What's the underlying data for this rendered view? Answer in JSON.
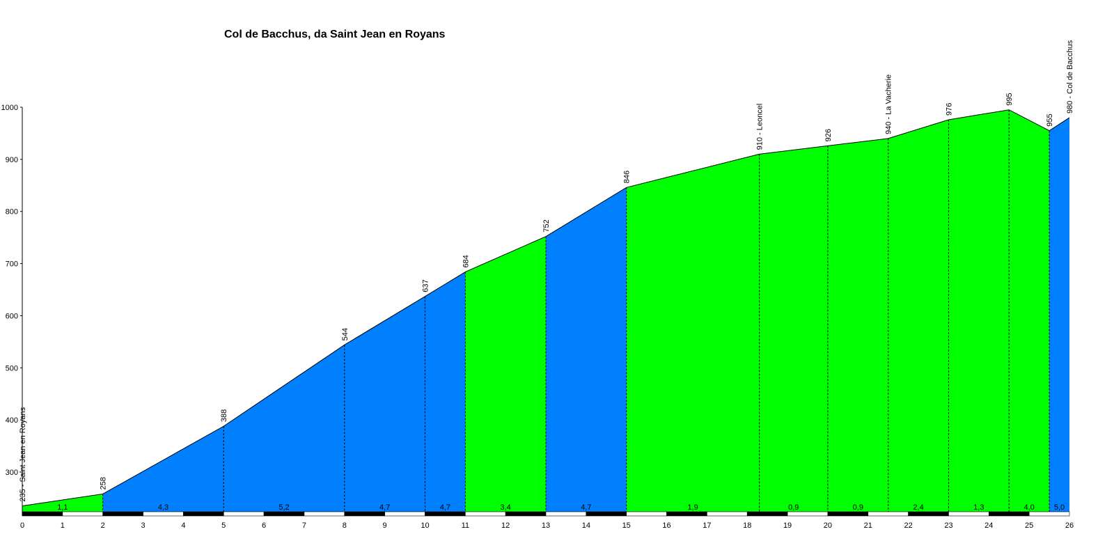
{
  "chart_data": {
    "type": "area",
    "title": "Col de Bacchus, da Saint Jean en Royans",
    "xlim": [
      0,
      26
    ],
    "ylim": [
      220,
      1000
    ],
    "x_ticks": [
      0,
      1,
      2,
      3,
      4,
      5,
      6,
      7,
      8,
      9,
      10,
      11,
      12,
      13,
      14,
      15,
      16,
      17,
      18,
      19,
      20,
      21,
      22,
      23,
      24,
      25,
      26
    ],
    "y_ticks": [
      300,
      400,
      500,
      600,
      700,
      800,
      900,
      1000
    ],
    "points": [
      {
        "x": 0,
        "y": 235,
        "label": "235 - Saint Jean en Royans"
      },
      {
        "x": 2,
        "y": 258,
        "label": "258"
      },
      {
        "x": 5,
        "y": 388,
        "label": "388"
      },
      {
        "x": 8,
        "y": 544,
        "label": "544"
      },
      {
        "x": 10,
        "y": 637,
        "label": "637"
      },
      {
        "x": 11,
        "y": 684,
        "label": "684"
      },
      {
        "x": 13,
        "y": 752,
        "label": "752"
      },
      {
        "x": 15,
        "y": 846,
        "label": "846"
      },
      {
        "x": 18.3,
        "y": 910,
        "label": "910 - Leoncel"
      },
      {
        "x": 20,
        "y": 926,
        "label": "926"
      },
      {
        "x": 21.5,
        "y": 940,
        "label": "940 - La Vacherie"
      },
      {
        "x": 23,
        "y": 976,
        "label": "976"
      },
      {
        "x": 24.5,
        "y": 995,
        "label": "995"
      },
      {
        "x": 25.5,
        "y": 955,
        "label": "955"
      },
      {
        "x": 26,
        "y": 980,
        "label": "980 - Col de Bacchus"
      }
    ],
    "segment_gradients": [
      "1,1",
      "4,3",
      "5,2",
      "4,7",
      "4,7",
      "3,4",
      "4,7",
      "1,9",
      "0,9",
      "0,9",
      "2,4",
      "1,3",
      "4,0",
      "5,0"
    ],
    "segment_colors": [
      "#00ff00",
      "#0080ff",
      "#0080ff",
      "#0080ff",
      "#0080ff",
      "#00ff00",
      "#0080ff",
      "#00ff00",
      "#00ff00",
      "#00ff00",
      "#00ff00",
      "#00ff00",
      "#00ff00",
      "#0080ff"
    ]
  }
}
